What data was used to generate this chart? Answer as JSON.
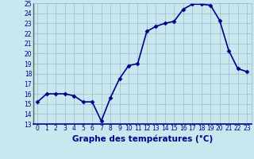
{
  "hours": [
    0,
    1,
    2,
    3,
    4,
    5,
    6,
    7,
    8,
    9,
    10,
    11,
    12,
    13,
    14,
    15,
    16,
    17,
    18,
    19,
    20,
    21,
    22,
    23
  ],
  "temps": [
    15.2,
    16.0,
    16.0,
    16.0,
    15.8,
    15.2,
    15.2,
    13.3,
    15.6,
    17.5,
    18.8,
    19.0,
    22.2,
    22.7,
    23.0,
    23.2,
    24.4,
    24.9,
    24.9,
    24.8,
    23.3,
    20.3,
    18.5,
    18.2
  ],
  "line_color": "#00008B",
  "marker": "D",
  "marker_size": 2.5,
  "bg_color": "#C8E8F0",
  "grid_color": "#A0B8C8",
  "xlabel": "Graphe des températures (°C)",
  "ylim": [
    13,
    25
  ],
  "xlim_min": -0.5,
  "xlim_max": 23.5,
  "yticks": [
    13,
    14,
    15,
    16,
    17,
    18,
    19,
    20,
    21,
    22,
    23,
    24,
    25
  ],
  "xticks": [
    0,
    1,
    2,
    3,
    4,
    5,
    6,
    7,
    8,
    9,
    10,
    11,
    12,
    13,
    14,
    15,
    16,
    17,
    18,
    19,
    20,
    21,
    22,
    23
  ],
  "tick_label_fontsize": 5.5,
  "xlabel_fontsize": 7.5,
  "xlabel_fontweight": "bold",
  "xlabel_color": "#00008B",
  "tick_color": "#00008B",
  "left_spine_color": "#606060",
  "bottom_spine_color": "#00008B",
  "linewidth": 1.2
}
